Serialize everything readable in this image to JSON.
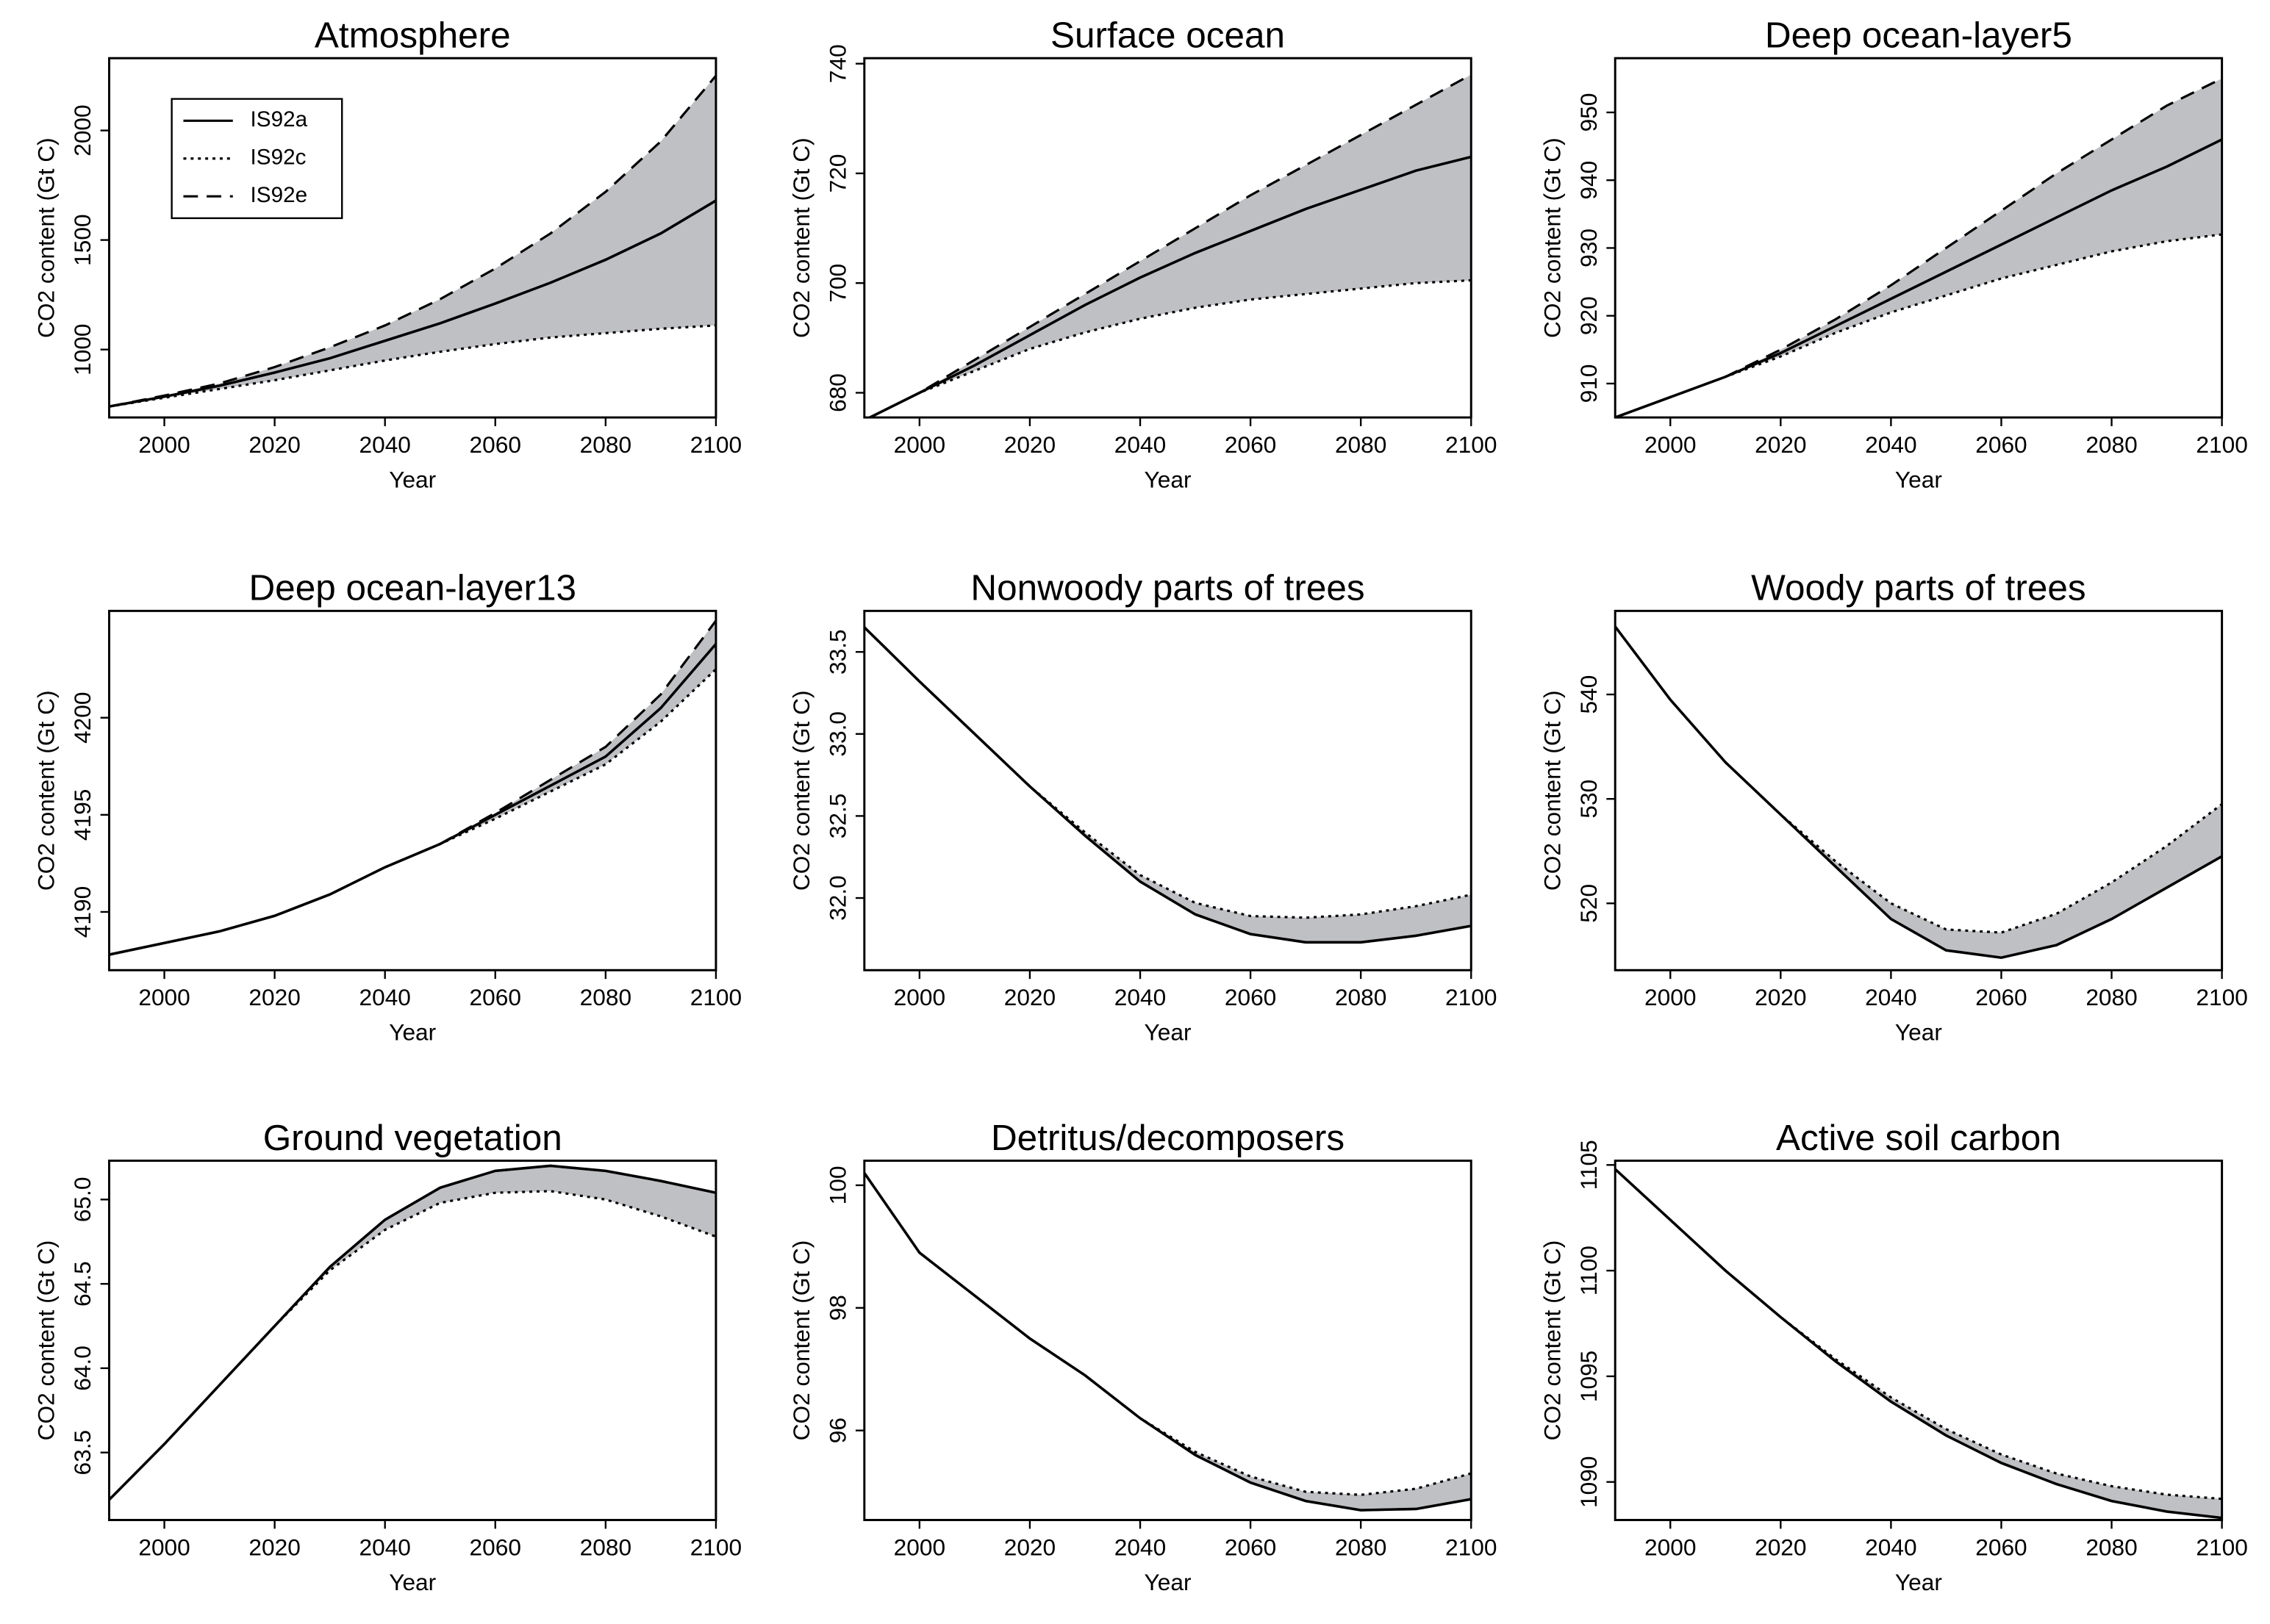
{
  "chart_data": [
    {
      "type": "line",
      "title": "Atmosphere",
      "xlabel": "Year",
      "ylabel": "CO2 content (Gt C)",
      "x": [
        1990,
        2000,
        2010,
        2020,
        2030,
        2040,
        2050,
        2060,
        2070,
        2080,
        2090,
        2100
      ],
      "xlim": [
        1990,
        2100
      ],
      "xticks": [
        2000,
        2020,
        2040,
        2060,
        2080,
        2100
      ],
      "ylim": [
        690,
        2330
      ],
      "yticks": [
        1000,
        1500,
        2000
      ],
      "band_color": "#bfc0c4",
      "legend": "upper left",
      "series": [
        {
          "name": "IS92a",
          "color": "#000000",
          "style": "solid",
          "values": [
            740,
            785,
            835,
            895,
            960,
            1040,
            1120,
            1210,
            1305,
            1410,
            1530,
            1680
          ]
        },
        {
          "name": "IS92c",
          "color": "#000000",
          "style": "dotted",
          "values": [
            740,
            780,
            820,
            860,
            905,
            950,
            990,
            1025,
            1055,
            1075,
            1095,
            1110
          ]
        },
        {
          "name": "IS92e",
          "color": "#000000",
          "style": "dashed",
          "values": [
            740,
            790,
            845,
            920,
            1010,
            1110,
            1230,
            1370,
            1530,
            1720,
            1950,
            2250
          ]
        }
      ]
    },
    {
      "type": "line",
      "title": "Surface ocean",
      "xlabel": "Year",
      "ylabel": "CO2 content (Gt C)",
      "x": [
        1990,
        2000,
        2010,
        2020,
        2030,
        2040,
        2050,
        2060,
        2070,
        2080,
        2090,
        2100
      ],
      "xlim": [
        1990,
        2100
      ],
      "xticks": [
        2000,
        2020,
        2040,
        2060,
        2080,
        2100
      ],
      "ylim": [
        675.5,
        741
      ],
      "yticks": [
        680,
        700,
        720,
        740
      ],
      "band_color": "#bfc0c4",
      "series": [
        {
          "color": "#000000",
          "style": "solid",
          "values": [
            675,
            680,
            685,
            690.5,
            696,
            701,
            705.5,
            709.5,
            713.5,
            717,
            720.5,
            723
          ]
        },
        {
          "color": "#000000",
          "style": "dotted",
          "values": [
            675,
            680,
            684,
            688,
            691,
            693.5,
            695.5,
            697,
            698,
            699,
            700,
            700.5
          ]
        },
        {
          "color": "#000000",
          "style": "dashed",
          "values": [
            675,
            680,
            686,
            692,
            698,
            704,
            710,
            716,
            721.5,
            727,
            732.5,
            738
          ]
        }
      ]
    },
    {
      "type": "line",
      "title": "Deep ocean-layer5",
      "xlabel": "Year",
      "ylabel": "CO2 content (Gt C)",
      "x": [
        1990,
        2000,
        2010,
        2020,
        2030,
        2040,
        2050,
        2060,
        2070,
        2080,
        2090,
        2100
      ],
      "xlim": [
        1990,
        2100
      ],
      "xticks": [
        2000,
        2020,
        2040,
        2060,
        2080,
        2100
      ],
      "ylim": [
        905,
        958
      ],
      "yticks": [
        910,
        920,
        930,
        940,
        950
      ],
      "band_color": "#bfc0c4",
      "series": [
        {
          "color": "#000000",
          "style": "solid",
          "values": [
            905,
            908,
            911,
            914.5,
            918.5,
            922.5,
            926.5,
            930.5,
            934.5,
            938.5,
            942,
            946
          ]
        },
        {
          "color": "#000000",
          "style": "dotted",
          "values": [
            905,
            908,
            911,
            914,
            917.5,
            920.5,
            923,
            925.5,
            927.5,
            929.5,
            931,
            932
          ]
        },
        {
          "color": "#000000",
          "style": "dashed",
          "values": [
            905,
            908,
            911,
            915,
            919.5,
            924.5,
            930,
            935.5,
            941,
            946,
            951,
            955
          ]
        }
      ]
    },
    {
      "type": "line",
      "title": "Deep ocean-layer13",
      "xlabel": "Year",
      "ylabel": "CO2 content (Gt C)",
      "x": [
        1990,
        2000,
        2010,
        2020,
        2030,
        2040,
        2050,
        2060,
        2070,
        2080,
        2090,
        2100
      ],
      "xlim": [
        1990,
        2100
      ],
      "xticks": [
        2000,
        2020,
        2040,
        2060,
        2080,
        2100
      ],
      "ylim": [
        4187,
        4205.5
      ],
      "yticks": [
        4190,
        4195,
        4200
      ],
      "band_color": "#bfc0c4",
      "series": [
        {
          "color": "#000000",
          "style": "solid",
          "values": [
            4187.8,
            4188.4,
            4189,
            4189.8,
            4190.9,
            4192.3,
            4193.5,
            4195,
            4196.5,
            4198,
            4200.5,
            4203.8
          ]
        },
        {
          "color": "#000000",
          "style": "dotted",
          "values": [
            4187.8,
            4188.4,
            4189,
            4189.8,
            4190.9,
            4192.3,
            4193.5,
            4194.8,
            4196.2,
            4197.6,
            4199.8,
            4202.5
          ]
        },
        {
          "color": "#000000",
          "style": "dashed",
          "values": [
            4187.8,
            4188.4,
            4189,
            4189.8,
            4190.9,
            4192.3,
            4193.5,
            4195.1,
            4196.8,
            4198.5,
            4201.2,
            4205
          ]
        }
      ]
    },
    {
      "type": "line",
      "title": "Nonwoody parts of trees",
      "xlabel": "Year",
      "ylabel": "CO2 content (Gt C)",
      "x": [
        1990,
        2000,
        2010,
        2020,
        2030,
        2040,
        2050,
        2060,
        2070,
        2080,
        2090,
        2100
      ],
      "xlim": [
        1990,
        2100
      ],
      "xticks": [
        2000,
        2020,
        2040,
        2060,
        2080,
        2100
      ],
      "ylim": [
        31.56,
        33.75
      ],
      "yticks": [
        {
          "value": 32,
          "label": "32.0"
        },
        32.5,
        {
          "value": 33,
          "label": "33.0"
        },
        33.5
      ],
      "band_color": "#bfc0c4",
      "series": [
        {
          "color": "#000000",
          "style": "solid",
          "values": [
            33.65,
            33.32,
            33,
            32.68,
            32.38,
            32.1,
            31.9,
            31.78,
            31.73,
            31.73,
            31.77,
            31.83
          ]
        },
        {
          "color": "#000000",
          "style": "dotted",
          "values": [
            33.65,
            33.32,
            33,
            32.68,
            32.4,
            32.14,
            31.97,
            31.89,
            31.88,
            31.9,
            31.95,
            32.02
          ]
        },
        {
          "color": "#000000",
          "style": "dashed",
          "values": [
            33.65,
            33.32,
            33,
            32.68,
            32.38,
            32.1,
            31.9,
            31.78,
            31.73,
            31.73,
            31.77,
            31.83
          ]
        }
      ]
    },
    {
      "type": "line",
      "title": "Woody parts of trees",
      "xlabel": "Year",
      "ylabel": "CO2 content (Gt C)",
      "x": [
        1990,
        2000,
        2010,
        2020,
        2030,
        2040,
        2050,
        2060,
        2070,
        2080,
        2090,
        2100
      ],
      "xlim": [
        1990,
        2100
      ],
      "xticks": [
        2000,
        2020,
        2040,
        2060,
        2080,
        2100
      ],
      "ylim": [
        513.6,
        548
      ],
      "yticks": [
        520,
        530,
        540
      ],
      "band_color": "#bfc0c4",
      "series": [
        {
          "color": "#000000",
          "style": "solid",
          "values": [
            546.5,
            539.5,
            533.5,
            528.5,
            523.5,
            518.5,
            515.5,
            514.8,
            516,
            518.5,
            521.5,
            524.5
          ]
        },
        {
          "color": "#000000",
          "style": "dotted",
          "values": [
            546.5,
            539.5,
            533.5,
            528.5,
            524,
            520,
            517.5,
            517.2,
            519,
            522,
            525.5,
            529.5
          ]
        },
        {
          "color": "#000000",
          "style": "dashed",
          "values": [
            546.5,
            539.5,
            533.5,
            528.5,
            523.5,
            518.5,
            515.5,
            514.8,
            516,
            518.5,
            521.5,
            524.5
          ]
        }
      ]
    },
    {
      "type": "line",
      "title": "Ground vegetation",
      "xlabel": "Year",
      "ylabel": "CO2 content (Gt C)",
      "x": [
        1990,
        2000,
        2010,
        2020,
        2030,
        2040,
        2050,
        2060,
        2070,
        2080,
        2090,
        2100
      ],
      "xlim": [
        1990,
        2100
      ],
      "xticks": [
        2000,
        2020,
        2040,
        2060,
        2080,
        2100
      ],
      "ylim": [
        63.1,
        65.23
      ],
      "yticks": [
        63.5,
        {
          "value": 64,
          "label": "64.0"
        },
        64.5,
        {
          "value": 65,
          "label": "65.0"
        }
      ],
      "band_color": "#bfc0c4",
      "series": [
        {
          "color": "#000000",
          "style": "solid",
          "values": [
            63.22,
            63.55,
            63.9,
            64.25,
            64.6,
            64.88,
            65.07,
            65.17,
            65.2,
            65.17,
            65.11,
            65.04
          ]
        },
        {
          "color": "#000000",
          "style": "dotted",
          "values": [
            63.22,
            63.55,
            63.9,
            64.25,
            64.58,
            64.82,
            64.98,
            65.04,
            65.05,
            65,
            64.9,
            64.78
          ]
        },
        {
          "color": "#000000",
          "style": "dashed",
          "values": [
            63.22,
            63.55,
            63.9,
            64.25,
            64.6,
            64.88,
            65.07,
            65.17,
            65.2,
            65.17,
            65.11,
            65.04
          ]
        }
      ]
    },
    {
      "type": "line",
      "title": "Detritus/decomposers",
      "xlabel": "Year",
      "ylabel": "CO2 content (Gt C)",
      "x": [
        1990,
        2000,
        2010,
        2020,
        2030,
        2040,
        2050,
        2060,
        2070,
        2080,
        2090,
        2100
      ],
      "xlim": [
        1990,
        2100
      ],
      "xticks": [
        2000,
        2020,
        2040,
        2060,
        2080,
        2100
      ],
      "ylim": [
        94.54,
        100.4
      ],
      "yticks": [
        96,
        98,
        100
      ],
      "band_color": "#bfc0c4",
      "series": [
        {
          "color": "#000000",
          "style": "solid",
          "values": [
            100.2,
            98.9,
            98.2,
            97.5,
            96.9,
            96.2,
            95.6,
            95.15,
            94.85,
            94.7,
            94.72,
            94.88
          ]
        },
        {
          "color": "#000000",
          "style": "dotted",
          "values": [
            100.2,
            98.9,
            98.2,
            97.5,
            96.9,
            96.2,
            95.65,
            95.25,
            95,
            94.95,
            95.05,
            95.3
          ]
        },
        {
          "color": "#000000",
          "style": "dashed",
          "values": [
            100.2,
            98.9,
            98.2,
            97.5,
            96.9,
            96.2,
            95.6,
            95.15,
            94.85,
            94.7,
            94.72,
            94.88
          ]
        }
      ]
    },
    {
      "type": "line",
      "title": "Active soil carbon",
      "xlabel": "Year",
      "ylabel": "CO2 content (Gt C)",
      "x": [
        1990,
        2000,
        2010,
        2020,
        2030,
        2040,
        2050,
        2060,
        2070,
        2080,
        2090,
        2100
      ],
      "xlim": [
        1990,
        2100
      ],
      "xticks": [
        2000,
        2020,
        2040,
        2060,
        2080,
        2100
      ],
      "ylim": [
        1088.2,
        1105.2
      ],
      "yticks": [
        1090,
        1095,
        1100,
        1105
      ],
      "band_color": "#bfc0c4",
      "series": [
        {
          "color": "#000000",
          "style": "solid",
          "values": [
            1104.8,
            1102.4,
            1100,
            1097.8,
            1095.7,
            1093.8,
            1092.2,
            1090.9,
            1089.9,
            1089.1,
            1088.6,
            1088.3
          ]
        },
        {
          "color": "#000000",
          "style": "dotted",
          "values": [
            1104.8,
            1102.4,
            1100,
            1097.8,
            1095.8,
            1094,
            1092.5,
            1091.3,
            1090.4,
            1089.8,
            1089.4,
            1089.2
          ]
        },
        {
          "color": "#000000",
          "style": "dashed",
          "values": [
            1104.8,
            1102.4,
            1100,
            1097.8,
            1095.7,
            1093.8,
            1092.2,
            1090.9,
            1089.9,
            1089.1,
            1088.6,
            1088.3
          ]
        }
      ]
    }
  ]
}
